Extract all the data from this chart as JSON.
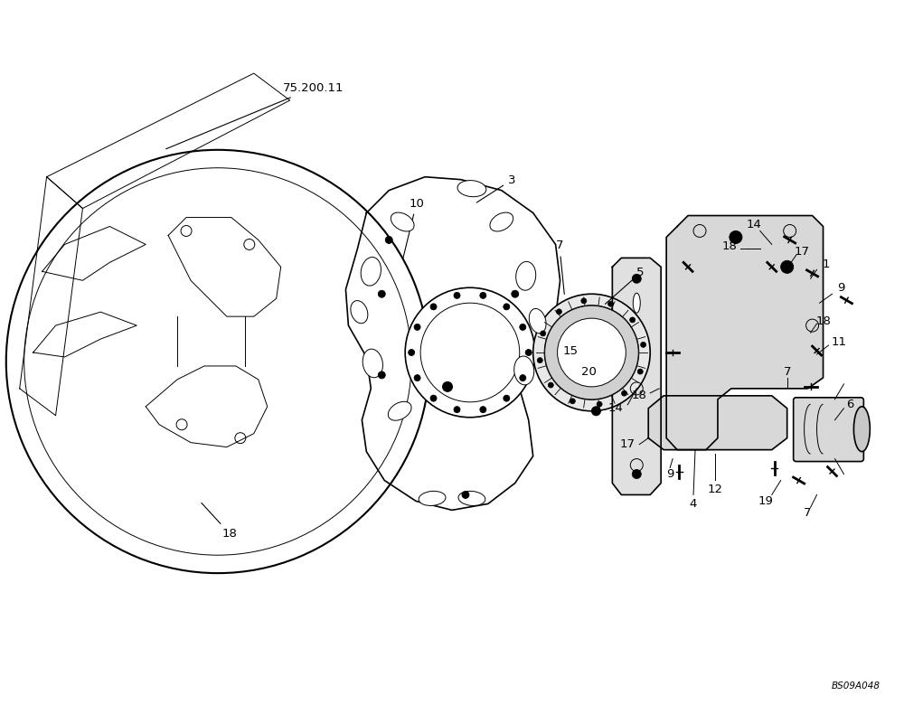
{
  "bg_color": "#ffffff",
  "line_color": "#000000",
  "fig_width": 10.0,
  "fig_height": 7.8,
  "dpi": 100,
  "watermark": "BS09A048",
  "ref_label": "75.200.11"
}
